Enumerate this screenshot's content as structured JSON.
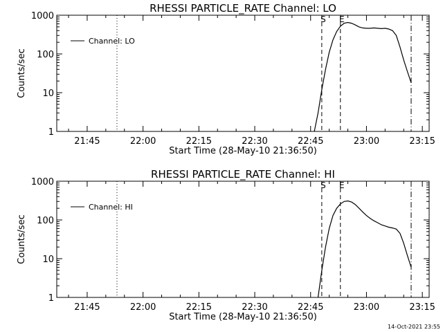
{
  "chart_data": [
    {
      "type": "line",
      "title": "RHESSI PARTICLE_RATE Channel: LO",
      "xlabel": "Start Time (28-May-10 21:36:50)",
      "ylabel": "Counts/sec",
      "yscale": "log",
      "ylim": [
        1,
        1000
      ],
      "xlim_minutes_after_start": [
        0,
        100
      ],
      "x_ticks": [
        "21:45",
        "22:00",
        "22:15",
        "22:30",
        "22:45",
        "23:00",
        "23:15"
      ],
      "y_ticks": [
        "1",
        "10",
        "100",
        "1000"
      ],
      "legend": {
        "label": "Channel: LO",
        "position": "top-left"
      },
      "markers": [
        {
          "time": "21:53",
          "style": "dotted",
          "label": ""
        },
        {
          "time": "22:48",
          "style": "dashed",
          "label": "S"
        },
        {
          "time": "22:53",
          "style": "dashed",
          "label": "E"
        },
        {
          "time": "23:12",
          "style": "dash-dot",
          "label": ""
        }
      ],
      "series": [
        {
          "name": "Channel: LO",
          "x": [
            "22:46",
            "22:47",
            "22:48",
            "22:49",
            "22:50",
            "22:51",
            "22:52",
            "22:53",
            "22:54",
            "22:55",
            "22:56",
            "22:57",
            "22:58",
            "22:59",
            "23:00",
            "23:01",
            "23:02",
            "23:03",
            "23:04",
            "23:05",
            "23:06",
            "23:07",
            "23:08",
            "23:09",
            "23:10",
            "23:11",
            "23:12"
          ],
          "y": [
            1,
            3,
            12,
            40,
            110,
            230,
            380,
            520,
            620,
            650,
            620,
            560,
            500,
            470,
            460,
            460,
            470,
            460,
            450,
            460,
            440,
            400,
            300,
            150,
            70,
            35,
            18
          ]
        }
      ]
    },
    {
      "type": "line",
      "title": "RHESSI PARTICLE_RATE Channel: HI",
      "xlabel": "Start Time (28-May-10 21:36:50)",
      "ylabel": "Counts/sec",
      "yscale": "log",
      "ylim": [
        1,
        1000
      ],
      "xlim_minutes_after_start": [
        0,
        100
      ],
      "x_ticks": [
        "21:45",
        "22:00",
        "22:15",
        "22:30",
        "22:45",
        "23:00",
        "23:15"
      ],
      "y_ticks": [
        "1",
        "10",
        "100",
        "1000"
      ],
      "legend": {
        "label": "Channel: HI",
        "position": "top-left"
      },
      "markers": [
        {
          "time": "21:53",
          "style": "dotted",
          "label": ""
        },
        {
          "time": "22:48",
          "style": "dashed",
          "label": "S"
        },
        {
          "time": "22:53",
          "style": "dashed",
          "label": "E"
        },
        {
          "time": "23:12",
          "style": "dash-dot",
          "label": ""
        }
      ],
      "series": [
        {
          "name": "Channel: HI",
          "x": [
            "22:47",
            "22:48",
            "22:49",
            "22:50",
            "22:51",
            "22:52",
            "22:53",
            "22:54",
            "22:55",
            "22:56",
            "22:57",
            "22:58",
            "22:59",
            "23:00",
            "23:01",
            "23:02",
            "23:03",
            "23:04",
            "23:05",
            "23:06",
            "23:07",
            "23:08",
            "23:09",
            "23:10",
            "23:11",
            "23:12"
          ],
          "y": [
            1,
            5,
            20,
            60,
            130,
            200,
            260,
            300,
            310,
            290,
            250,
            200,
            160,
            130,
            110,
            95,
            85,
            75,
            70,
            65,
            62,
            58,
            45,
            25,
            12,
            6
          ]
        }
      ]
    }
  ],
  "timestamp": "14-Oct-2021 23:55"
}
